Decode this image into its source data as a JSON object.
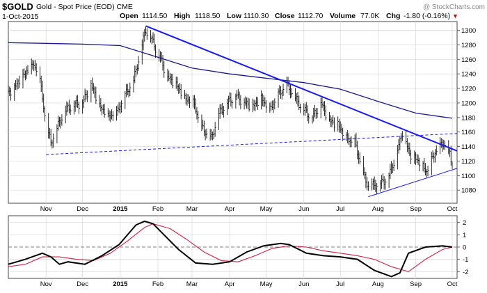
{
  "header": {
    "symbol": "$GOLD",
    "description": "Gold - Spot Price (EOD)  CME",
    "date": "1-Oct-2015",
    "watermark": "@ StockCharts.com",
    "open_label": "Open",
    "open_value": "1114.50",
    "high_label": "High",
    "high_value": "1118.50",
    "low_label": "Low",
    "low_value": "1110.30",
    "close_label": "Close",
    "close_value": "1112.70",
    "volume_label": "Volume",
    "volume_value": "77.0K",
    "chg_label": "Chg",
    "chg_value": "-1.80 (-0.16%)",
    "chg_arrow": "▼"
  },
  "colors": {
    "price_bars": "#111111",
    "moving_average": "#1a1a8c",
    "trendline": "#1a1aee",
    "macd_line": "#000000",
    "signal_line": "#cc2244",
    "grid": "#d8d8d8"
  },
  "chart_data": [
    {
      "type": "line",
      "panel": "price",
      "y_ticks": [
        "1080",
        "1100",
        "1120",
        "1140",
        "1160",
        "1180",
        "1200",
        "1220",
        "1240",
        "1260",
        "1280",
        "1300"
      ],
      "y_tick_values": [
        1080,
        1100,
        1120,
        1140,
        1160,
        1180,
        1200,
        1220,
        1240,
        1260,
        1280,
        1300
      ],
      "ylim": [
        1062,
        1312
      ],
      "x_ticks": [
        "Nov",
        "Dec",
        "2015",
        "Feb",
        "Mar",
        "Apr",
        "May",
        "Jun",
        "Jul",
        "Aug",
        "Sep",
        "Oct"
      ],
      "x_tick_bold": [
        false,
        false,
        true,
        false,
        false,
        false,
        false,
        false,
        false,
        false,
        false,
        false
      ],
      "x_tick_dates": [
        "2014-11-01",
        "2014-12-01",
        "2015-01-01",
        "2015-02-01",
        "2015-03-01",
        "2015-04-01",
        "2015-05-01",
        "2015-06-01",
        "2015-07-01",
        "2015-08-01",
        "2015-09-01",
        "2015-10-01"
      ],
      "xlim": [
        "2014-10-01",
        "2015-10-05"
      ],
      "close_series": {
        "x": [
          "2014-10-01",
          "2014-10-08",
          "2014-10-15",
          "2014-10-22",
          "2014-10-27",
          "2014-11-01",
          "2014-11-05",
          "2014-11-10",
          "2014-11-17",
          "2014-11-24",
          "2014-12-01",
          "2014-12-08",
          "2014-12-15",
          "2014-12-22",
          "2014-12-29",
          "2015-01-05",
          "2015-01-12",
          "2015-01-19",
          "2015-01-22",
          "2015-01-26",
          "2015-02-02",
          "2015-02-09",
          "2015-02-16",
          "2015-02-23",
          "2015-03-02",
          "2015-03-09",
          "2015-03-17",
          "2015-03-23",
          "2015-03-30",
          "2015-04-06",
          "2015-04-13",
          "2015-04-20",
          "2015-04-27",
          "2015-05-04",
          "2015-05-11",
          "2015-05-18",
          "2015-05-25",
          "2015-06-01",
          "2015-06-08",
          "2015-06-15",
          "2015-06-22",
          "2015-06-29",
          "2015-07-06",
          "2015-07-13",
          "2015-07-20",
          "2015-07-24",
          "2015-08-03",
          "2015-08-10",
          "2015-08-17",
          "2015-08-21",
          "2015-08-27",
          "2015-09-03",
          "2015-09-10",
          "2015-09-17",
          "2015-09-24",
          "2015-09-29",
          "2015-10-01"
        ],
        "y": [
          1212,
          1225,
          1240,
          1252,
          1230,
          1170,
          1144,
          1165,
          1190,
          1197,
          1200,
          1225,
          1195,
          1180,
          1185,
          1210,
          1230,
          1280,
          1300,
          1290,
          1265,
          1235,
          1225,
          1205,
          1200,
          1165,
          1150,
          1185,
          1200,
          1210,
          1200,
          1195,
          1205,
          1190,
          1210,
          1225,
          1205,
          1190,
          1180,
          1200,
          1175,
          1170,
          1150,
          1145,
          1100,
          1085,
          1088,
          1100,
          1135,
          1160,
          1130,
          1120,
          1105,
          1132,
          1145,
          1128,
          1113
        ]
      },
      "moving_average_series": {
        "x": [
          "2014-10-01",
          "2014-11-01",
          "2014-12-01",
          "2015-01-01",
          "2015-02-01",
          "2015-03-01",
          "2015-04-01",
          "2015-05-01",
          "2015-06-01",
          "2015-07-01",
          "2015-08-01",
          "2015-09-01",
          "2015-10-01"
        ],
        "y": [
          1283,
          1282,
          1281,
          1279,
          1263,
          1248,
          1240,
          1234,
          1228,
          1219,
          1202,
          1186,
          1179
        ]
      },
      "trendlines": [
        {
          "style": "solid",
          "x": [
            "2015-01-22",
            "2015-10-05"
          ],
          "y": [
            1306,
            1134
          ]
        },
        {
          "style": "dashed",
          "x": [
            "2014-11-01",
            "2015-10-05"
          ],
          "y": [
            1129,
            1158
          ]
        },
        {
          "style": "solid-thin",
          "x": [
            "2015-07-24",
            "2015-10-05"
          ],
          "y": [
            1071,
            1110
          ]
        }
      ]
    },
    {
      "type": "line",
      "panel": "macd",
      "y_ticks": [
        "2",
        "1",
        "0",
        "-1",
        "-2"
      ],
      "y_tick_values": [
        2,
        1,
        0,
        -1,
        -2
      ],
      "ylim": [
        -2.55,
        2.55
      ],
      "zero_line": 0,
      "series": [
        {
          "x": [
            "2014-10-01",
            "2014-10-15",
            "2014-10-29",
            "2014-11-05",
            "2014-11-12",
            "2014-11-19",
            "2014-12-03",
            "2014-12-17",
            "2014-12-31",
            "2015-01-14",
            "2015-01-21",
            "2015-01-28",
            "2015-02-04",
            "2015-02-18",
            "2015-03-04",
            "2015-03-18",
            "2015-04-01",
            "2015-04-15",
            "2015-04-29",
            "2015-05-13",
            "2015-05-20",
            "2015-06-03",
            "2015-06-17",
            "2015-07-01",
            "2015-07-15",
            "2015-07-29",
            "2015-08-12",
            "2015-08-19",
            "2015-08-26",
            "2015-09-09",
            "2015-09-23",
            "2015-10-01"
          ],
          "y": [
            -1.4,
            -1.0,
            -0.5,
            -0.8,
            -1.4,
            -1.2,
            -1.4,
            -0.7,
            0.2,
            1.8,
            2.1,
            1.9,
            1.2,
            -0.2,
            -1.3,
            -1.4,
            -1.2,
            -0.4,
            0.1,
            0.3,
            0.2,
            -0.5,
            -0.7,
            -0.8,
            -1.0,
            -1.9,
            -2.4,
            -2.1,
            -0.5,
            0.0,
            0.1,
            0.0
          ]
        },
        {
          "x": [
            "2014-10-01",
            "2014-10-15",
            "2014-10-29",
            "2014-11-12",
            "2014-11-26",
            "2014-12-10",
            "2014-12-24",
            "2015-01-07",
            "2015-01-21",
            "2015-01-28",
            "2015-02-11",
            "2015-02-25",
            "2015-03-11",
            "2015-03-25",
            "2015-04-08",
            "2015-04-22",
            "2015-05-06",
            "2015-05-20",
            "2015-06-03",
            "2015-06-17",
            "2015-07-01",
            "2015-07-15",
            "2015-07-29",
            "2015-08-12",
            "2015-08-26",
            "2015-09-09",
            "2015-09-23",
            "2015-10-01"
          ],
          "y": [
            -1.6,
            -1.4,
            -0.8,
            -0.8,
            -1.0,
            -1.1,
            -0.5,
            0.5,
            1.6,
            1.9,
            1.5,
            0.6,
            -0.4,
            -1.1,
            -1.2,
            -0.7,
            -0.1,
            0.1,
            0.0,
            -0.3,
            -0.5,
            -0.7,
            -1.0,
            -1.6,
            -2.0,
            -1.0,
            -0.2,
            0.0
          ]
        }
      ]
    }
  ]
}
